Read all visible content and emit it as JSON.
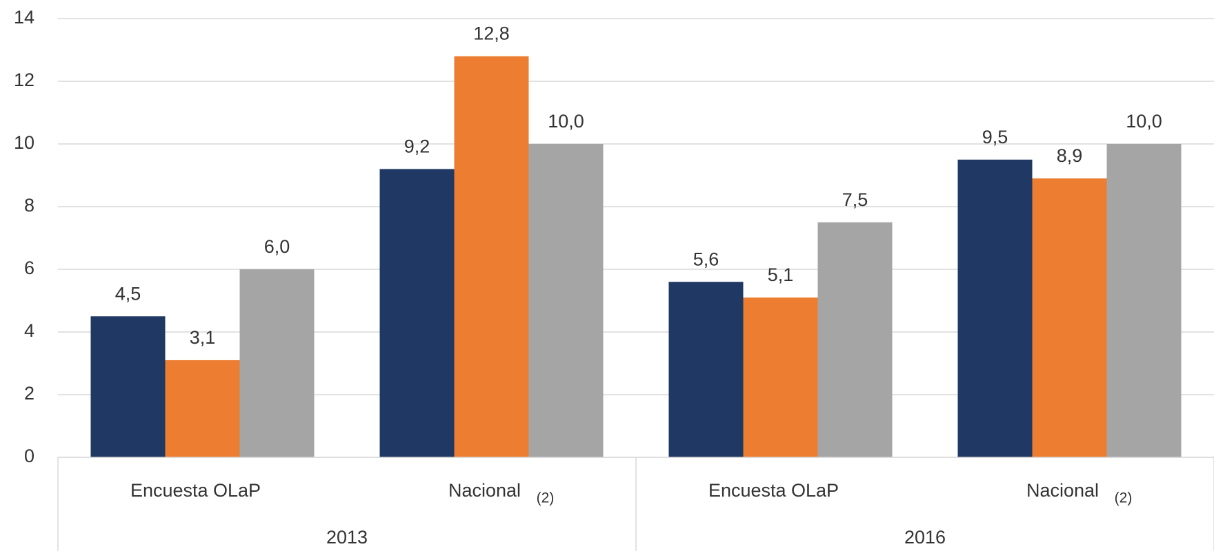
{
  "chart_data": {
    "type": "bar",
    "categories": [
      "Encuesta OLaP",
      "Nacional",
      "Encuesta OLaP",
      "Nacional"
    ],
    "category_notes": [
      null,
      "(2)",
      null,
      "(2)"
    ],
    "groups": [
      "2013",
      "2016"
    ],
    "series": [
      {
        "color": "#203864",
        "values": [
          4.5,
          9.2,
          5.6,
          9.5
        ],
        "value_labels": [
          "4,5",
          "9,2",
          "5,6",
          "9,5"
        ]
      },
      {
        "color": "#ED7D31",
        "values": [
          3.1,
          12.8,
          5.1,
          8.9
        ],
        "value_labels": [
          "3,1",
          "12,8",
          "5,1",
          "8,9"
        ]
      },
      {
        "color": "#A5A5A5",
        "values": [
          6.0,
          10.0,
          7.5,
          10.0
        ],
        "value_labels": [
          "6,0",
          "10,0",
          "7,5",
          "10,0"
        ]
      }
    ],
    "ylim": [
      0,
      14
    ],
    "yticks": [
      0,
      2,
      4,
      6,
      8,
      10,
      12,
      14
    ],
    "grid": true
  }
}
